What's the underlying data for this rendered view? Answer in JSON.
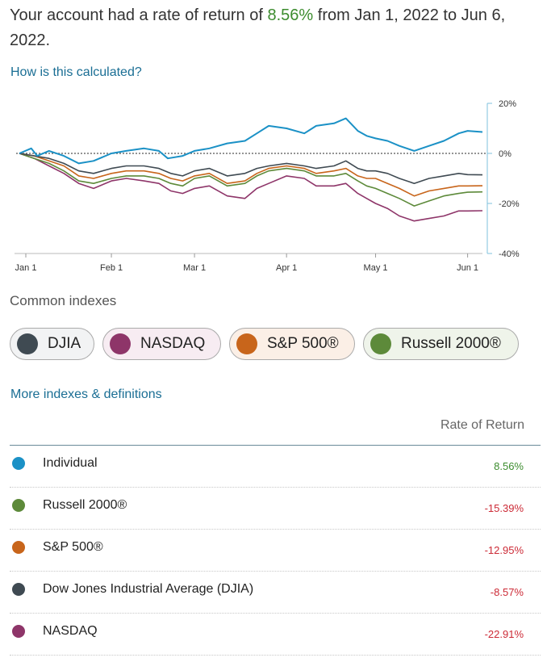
{
  "header": {
    "text_before": "Your account had a rate of return of ",
    "rate": "8.56%",
    "text_after": " from Jan 1, 2022 to Jun 6, 2022."
  },
  "how_calculated_link": "How is this calculated?",
  "colors": {
    "individual": "#1b91c6",
    "djia": "#3f4a52",
    "nasdaq": "#8e3569",
    "sp500": "#c8651b",
    "russell": "#5d8a3a",
    "positive": "#3c8c2e",
    "negative": "#cc2a36",
    "link": "#1a6e94"
  },
  "chart_data": {
    "type": "line",
    "x_tick_labels": [
      "Jan 1",
      "Feb 1",
      "Mar 1",
      "Apr 1",
      "May 1",
      "Jun 1"
    ],
    "x_ticks_day": [
      0,
      31,
      59,
      90,
      120,
      151
    ],
    "x_range_day": [
      0,
      156
    ],
    "y_tick_labels": [
      "20%",
      "0%",
      "-20%",
      "-40%"
    ],
    "y_ticks": [
      20,
      0,
      -20,
      -40
    ],
    "ylim": [
      -40,
      20
    ],
    "zero_line": "dotted",
    "series": [
      {
        "key": "individual",
        "x": [
          0,
          4,
          6,
          10,
          15,
          20,
          25,
          31,
          36,
          42,
          47,
          50,
          55,
          59,
          64,
          70,
          76,
          80,
          84,
          90,
          96,
          100,
          106,
          110,
          114,
          117,
          120,
          124,
          128,
          133,
          138,
          143,
          148,
          151,
          156
        ],
        "y": [
          0,
          2,
          -1,
          1,
          -1,
          -4,
          -3,
          0,
          1,
          2,
          1,
          -2,
          -1,
          1,
          2,
          4,
          5,
          8,
          11,
          10,
          8,
          11,
          12,
          14,
          9,
          7,
          6,
          5,
          3,
          1,
          3,
          5,
          8,
          9,
          8.56
        ]
      },
      {
        "key": "djia",
        "x": [
          0,
          5,
          10,
          15,
          20,
          25,
          31,
          36,
          42,
          47,
          51,
          55,
          59,
          64,
          70,
          76,
          80,
          84,
          90,
          96,
          100,
          106,
          110,
          114,
          117,
          120,
          124,
          128,
          133,
          138,
          143,
          148,
          151,
          156
        ],
        "y": [
          0,
          -1,
          -2,
          -4,
          -7,
          -8,
          -6,
          -5,
          -5,
          -6,
          -8,
          -9,
          -7,
          -6,
          -9,
          -8,
          -6,
          -5,
          -4,
          -5,
          -6,
          -5,
          -3,
          -6,
          -7,
          -7,
          -8,
          -10,
          -12,
          -10,
          -9,
          -8,
          -8.5,
          -8.57
        ]
      },
      {
        "key": "sp500",
        "x": [
          0,
          5,
          10,
          15,
          20,
          25,
          31,
          36,
          42,
          47,
          51,
          55,
          59,
          64,
          70,
          76,
          80,
          84,
          90,
          96,
          100,
          106,
          110,
          114,
          117,
          120,
          124,
          128,
          133,
          138,
          143,
          148,
          151,
          156
        ],
        "y": [
          0,
          -1,
          -3,
          -5,
          -9,
          -10,
          -8,
          -7,
          -7,
          -8,
          -10,
          -11,
          -9,
          -8,
          -12,
          -11,
          -8,
          -6,
          -5,
          -6,
          -8,
          -7,
          -6,
          -9,
          -10,
          -10,
          -12,
          -14,
          -17,
          -15,
          -14,
          -13,
          -13,
          -12.95
        ]
      },
      {
        "key": "russell",
        "x": [
          0,
          5,
          10,
          15,
          20,
          25,
          31,
          36,
          42,
          47,
          51,
          55,
          59,
          64,
          70,
          76,
          80,
          84,
          90,
          96,
          100,
          106,
          110,
          114,
          117,
          120,
          124,
          128,
          133,
          138,
          143,
          148,
          151,
          156
        ],
        "y": [
          0,
          -2,
          -4,
          -7,
          -11,
          -12,
          -10,
          -9,
          -9,
          -10,
          -12,
          -13,
          -10,
          -9,
          -13,
          -12,
          -9,
          -7,
          -6,
          -7,
          -9,
          -9,
          -8,
          -11,
          -13,
          -14,
          -16,
          -18,
          -21,
          -19,
          -17,
          -16,
          -15.5,
          -15.39
        ]
      },
      {
        "key": "nasdaq",
        "x": [
          0,
          5,
          10,
          15,
          20,
          25,
          31,
          36,
          42,
          47,
          51,
          55,
          59,
          64,
          70,
          76,
          80,
          84,
          90,
          96,
          100,
          106,
          110,
          114,
          117,
          120,
          124,
          128,
          133,
          138,
          143,
          148,
          151,
          156
        ],
        "y": [
          0,
          -2,
          -5,
          -8,
          -12,
          -14,
          -11,
          -10,
          -11,
          -12,
          -15,
          -16,
          -14,
          -13,
          -17,
          -18,
          -14,
          -12,
          -9,
          -10,
          -13,
          -13,
          -12,
          -16,
          -18,
          -20,
          -22,
          -25,
          -27,
          -26,
          -25,
          -23,
          -23,
          -22.91
        ]
      }
    ]
  },
  "common_indexes_heading": "Common indexes",
  "index_chips": [
    {
      "key": "djia",
      "label": "DJIA"
    },
    {
      "key": "nasdaq",
      "label": "NASDAQ"
    },
    {
      "key": "sp500",
      "label": "S&P 500®"
    },
    {
      "key": "russell",
      "label": "Russell 2000®"
    }
  ],
  "more_indexes_link": "More indexes & definitions",
  "table": {
    "header": "Rate of Return",
    "rows": [
      {
        "key": "individual",
        "name": "Individual",
        "value": "8.56%",
        "sign": "positive"
      },
      {
        "key": "russell",
        "name": "Russell 2000®",
        "value": "-15.39%",
        "sign": "negative"
      },
      {
        "key": "sp500",
        "name": "S&P 500®",
        "value": "-12.95%",
        "sign": "negative"
      },
      {
        "key": "djia",
        "name": "Dow Jones Industrial Average (DJIA)",
        "value": "-8.57%",
        "sign": "negative"
      },
      {
        "key": "nasdaq",
        "name": "NASDAQ",
        "value": "-22.91%",
        "sign": "negative"
      }
    ]
  }
}
